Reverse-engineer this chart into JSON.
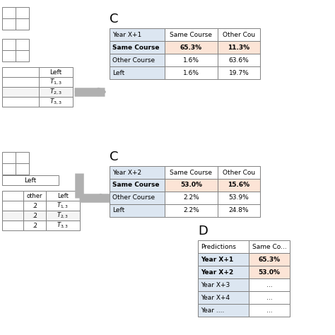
{
  "white": "#ffffff",
  "light_blue": "#dce6f1",
  "light_orange": "#fce4d6",
  "gray_border": "#808080",
  "arrow_color": "#b0b0b0",
  "table_C1": {
    "label": "C",
    "header_row": [
      "Year X+1",
      "Same Course",
      "Other Cou"
    ],
    "rows": [
      [
        "Same Course",
        "65.3%",
        "11.3%"
      ],
      [
        "Other Course",
        "1.6%",
        "63.6%"
      ],
      [
        "Left",
        "1.6%",
        "19.7%"
      ]
    ],
    "bold_row": 0
  },
  "table_C2": {
    "label": "C",
    "header_row": [
      "Year X+2",
      "Same Course",
      "Other Cou"
    ],
    "rows": [
      [
        "Same Course",
        "53.0%",
        "15.6%"
      ],
      [
        "Other Course",
        "2.2%",
        "53.9%"
      ],
      [
        "Left",
        "2.2%",
        "24.8%"
      ]
    ],
    "bold_row": 0
  },
  "table_D": {
    "label": "D",
    "header_row": [
      "Predictions",
      "Same Co..."
    ],
    "rows": [
      [
        "Year X+1",
        "65.3%"
      ],
      [
        "Year X+2",
        "53.0%"
      ],
      [
        "Year X+3",
        "..."
      ],
      [
        "Year X+4",
        "..."
      ],
      [
        "Year ....",
        "..."
      ]
    ],
    "highlight_rows": [
      0,
      1
    ]
  }
}
